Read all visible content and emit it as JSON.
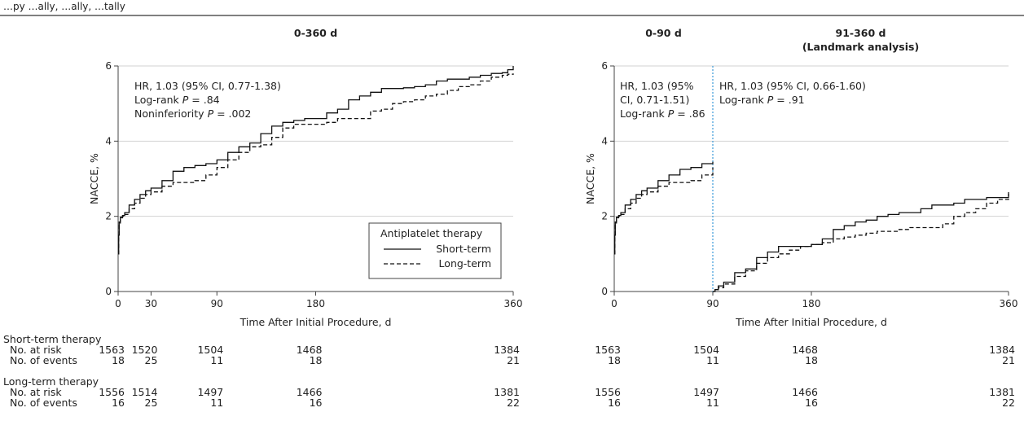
{
  "header_text": "…py …ally, …ally, …tally",
  "legend": {
    "title": "Antiplatelet therapy",
    "entries": [
      "Short-term",
      "Long-term"
    ]
  },
  "chart_data": [
    {
      "type": "line",
      "title": "0-360 d",
      "subtitle": "",
      "xlabel": "Time After Initial Procedure, d",
      "ylabel": "NACCE, %",
      "xlim": [
        0,
        360
      ],
      "ylim": [
        0,
        6
      ],
      "xticks": [
        0,
        30,
        90,
        180,
        360
      ],
      "yticks": [
        0,
        2,
        4,
        6
      ],
      "grid": "horizontal",
      "legend_position": "bottom-right",
      "annotations": [
        {
          "id": "hr",
          "lines": [
            {
              "runs": [
                {
                  "t": "HR, 1.03 (95% CI, 0.77-1.38)"
                }
              ]
            },
            {
              "runs": [
                {
                  "t": "Log-rank "
                },
                {
                  "t": "P",
                  "italic": true
                },
                {
                  "t": " = .84"
                }
              ]
            },
            {
              "runs": [
                {
                  "t": "Noninferiority "
                },
                {
                  "t": "P",
                  "italic": true
                },
                {
                  "t": " = .002"
                }
              ]
            }
          ]
        }
      ],
      "series": [
        {
          "name": "Short-term",
          "style": "solid",
          "x": [
            0,
            0.5,
            1,
            2,
            4,
            6,
            10,
            15,
            20,
            25,
            30,
            40,
            50,
            60,
            70,
            80,
            90,
            100,
            110,
            120,
            130,
            140,
            150,
            160,
            170,
            180,
            190,
            200,
            210,
            220,
            230,
            240,
            250,
            260,
            270,
            280,
            290,
            300,
            310,
            320,
            330,
            340,
            350,
            355,
            360
          ],
          "y": [
            1.0,
            1.5,
            1.85,
            1.98,
            2.02,
            2.1,
            2.3,
            2.45,
            2.58,
            2.68,
            2.75,
            2.95,
            3.2,
            3.3,
            3.35,
            3.4,
            3.5,
            3.7,
            3.85,
            3.95,
            4.2,
            4.4,
            4.5,
            4.55,
            4.6,
            4.6,
            4.75,
            4.85,
            5.1,
            5.2,
            5.3,
            5.4,
            5.4,
            5.42,
            5.45,
            5.5,
            5.6,
            5.65,
            5.65,
            5.7,
            5.75,
            5.8,
            5.82,
            5.9,
            6.0
          ]
        },
        {
          "name": "Long-term",
          "style": "dashed",
          "x": [
            0,
            0.5,
            1,
            2,
            4,
            6,
            10,
            15,
            20,
            25,
            30,
            40,
            50,
            60,
            70,
            80,
            90,
            100,
            110,
            120,
            130,
            140,
            150,
            160,
            170,
            180,
            190,
            200,
            210,
            220,
            230,
            240,
            250,
            260,
            270,
            280,
            290,
            300,
            310,
            320,
            330,
            340,
            350,
            355,
            360
          ],
          "y": [
            1.0,
            1.45,
            1.82,
            1.96,
            2.0,
            2.05,
            2.2,
            2.35,
            2.48,
            2.58,
            2.65,
            2.8,
            2.9,
            2.9,
            2.95,
            3.1,
            3.3,
            3.5,
            3.7,
            3.85,
            3.9,
            4.1,
            4.35,
            4.45,
            4.45,
            4.45,
            4.5,
            4.6,
            4.6,
            4.6,
            4.8,
            4.85,
            5.0,
            5.05,
            5.1,
            5.2,
            5.25,
            5.35,
            5.45,
            5.5,
            5.6,
            5.7,
            5.75,
            5.78,
            5.8
          ]
        }
      ],
      "risk_table": {
        "x": [
          0,
          30,
          90,
          180,
          360
        ],
        "groups": [
          {
            "label": "Short-term therapy",
            "rows": [
              {
                "label": "No. at risk",
                "values": [
                  "1563",
                  "1520",
                  "1504",
                  "1468",
                  "1384"
                ]
              },
              {
                "label": "No. of events",
                "values": [
                  "18",
                  "25",
                  "11",
                  "18",
                  "21"
                ]
              }
            ]
          },
          {
            "label": "Long-term therapy",
            "rows": [
              {
                "label": "No. at risk",
                "values": [
                  "1556",
                  "1514",
                  "1497",
                  "1466",
                  "1381"
                ]
              },
              {
                "label": "No. of events",
                "values": [
                  "16",
                  "25",
                  "11",
                  "16",
                  "22"
                ]
              }
            ]
          }
        ]
      }
    },
    {
      "type": "line",
      "title": "0-90 d",
      "subtitle": "91-360 d",
      "subtitle2": "(Landmark analysis)",
      "xlabel": "Time After Initial Procedure, d",
      "ylabel": "NACCE, %",
      "xlim": [
        0,
        360
      ],
      "ylim": [
        0,
        6
      ],
      "xticks": [
        0,
        90,
        180,
        360
      ],
      "yticks": [
        0,
        2,
        4,
        6
      ],
      "grid": "horizontal",
      "landmark_x": 90,
      "annotations": [
        {
          "id": "hr_early",
          "lines": [
            {
              "runs": [
                {
                  "t": "HR, 1.03 (95%"
                }
              ]
            },
            {
              "runs": [
                {
                  "t": "CI, 0.71-1.51)"
                }
              ]
            },
            {
              "runs": [
                {
                  "t": "Log-rank "
                },
                {
                  "t": "P",
                  "italic": true
                },
                {
                  "t": " = .86"
                }
              ]
            }
          ]
        },
        {
          "id": "hr_late",
          "lines": [
            {
              "runs": [
                {
                  "t": "HR, 1.03 (95% CI, 0.66-1.60)"
                }
              ]
            },
            {
              "runs": [
                {
                  "t": "Log-rank "
                },
                {
                  "t": "P",
                  "italic": true
                },
                {
                  "t": " = .91"
                }
              ]
            }
          ]
        }
      ],
      "series": [
        {
          "name": "Short-term",
          "style": "solid",
          "segment": "early",
          "x": [
            0,
            0.5,
            1,
            2,
            4,
            6,
            10,
            15,
            20,
            25,
            30,
            40,
            50,
            60,
            70,
            80,
            90
          ],
          "y": [
            1.0,
            1.5,
            1.85,
            1.98,
            2.02,
            2.1,
            2.3,
            2.45,
            2.58,
            2.68,
            2.75,
            2.95,
            3.1,
            3.25,
            3.3,
            3.4,
            3.45
          ]
        },
        {
          "name": "Long-term",
          "style": "dashed",
          "segment": "early",
          "x": [
            0,
            0.5,
            1,
            2,
            4,
            6,
            10,
            15,
            20,
            25,
            30,
            40,
            50,
            60,
            70,
            80,
            90
          ],
          "y": [
            1.0,
            1.45,
            1.82,
            1.96,
            2.0,
            2.05,
            2.2,
            2.35,
            2.48,
            2.58,
            2.65,
            2.8,
            2.9,
            2.9,
            2.95,
            3.1,
            3.3
          ]
        },
        {
          "name": "Short-term",
          "style": "solid",
          "segment": "late",
          "x": [
            90,
            92,
            95,
            100,
            110,
            120,
            130,
            140,
            150,
            160,
            170,
            180,
            190,
            200,
            210,
            220,
            230,
            240,
            250,
            260,
            270,
            280,
            290,
            300,
            310,
            320,
            330,
            340,
            350,
            360
          ],
          "y": [
            0.0,
            0.05,
            0.15,
            0.25,
            0.5,
            0.6,
            0.9,
            1.05,
            1.2,
            1.2,
            1.2,
            1.25,
            1.4,
            1.65,
            1.75,
            1.85,
            1.9,
            2.0,
            2.05,
            2.1,
            2.1,
            2.2,
            2.3,
            2.3,
            2.35,
            2.45,
            2.45,
            2.5,
            2.5,
            2.6
          ]
        },
        {
          "name": "Long-term",
          "style": "dashed",
          "segment": "late",
          "x": [
            90,
            92,
            95,
            100,
            110,
            120,
            130,
            140,
            150,
            160,
            170,
            180,
            190,
            200,
            210,
            220,
            230,
            240,
            250,
            260,
            270,
            280,
            290,
            300,
            310,
            320,
            330,
            340,
            350,
            360
          ],
          "y": [
            0.0,
            0.05,
            0.1,
            0.2,
            0.4,
            0.55,
            0.75,
            0.9,
            1.0,
            1.1,
            1.2,
            1.25,
            1.3,
            1.4,
            1.45,
            1.5,
            1.55,
            1.6,
            1.6,
            1.65,
            1.7,
            1.7,
            1.7,
            1.8,
            2.0,
            2.1,
            2.2,
            2.35,
            2.45,
            2.65
          ]
        }
      ],
      "risk_table": {
        "x": [
          0,
          90,
          180,
          360
        ],
        "groups": [
          {
            "label": "",
            "rows": [
              {
                "label": "",
                "values": [
                  "1563",
                  "1504",
                  "1468",
                  "1384"
                ]
              },
              {
                "label": "",
                "values": [
                  "18",
                  "11",
                  "18",
                  "21"
                ]
              }
            ]
          },
          {
            "label": "",
            "rows": [
              {
                "label": "",
                "values": [
                  "1556",
                  "1497",
                  "1466",
                  "1381"
                ]
              },
              {
                "label": "",
                "values": [
                  "16",
                  "11",
                  "16",
                  "22"
                ]
              }
            ]
          }
        ]
      }
    }
  ]
}
